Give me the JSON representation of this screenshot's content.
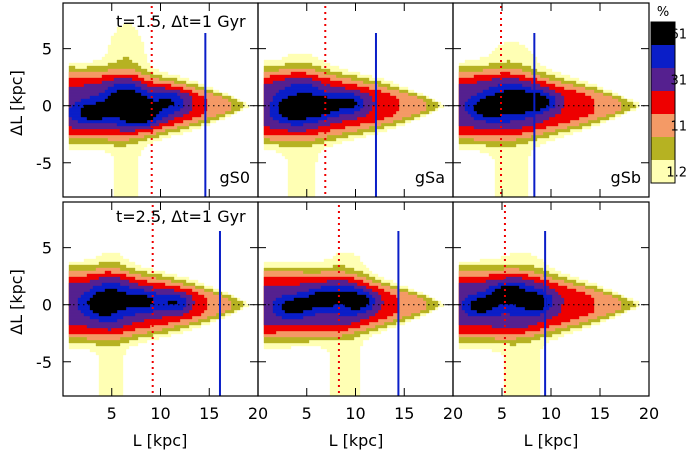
{
  "figure": {
    "annotations": {
      "row0": "t=1.5, Δt=1 Gyr",
      "row1": "t=2.5, Δt=1 Gyr"
    },
    "colorbar": {
      "unit": "%",
      "tick_labels": [
        "61",
        "31",
        "11",
        "1.2"
      ],
      "colors": [
        "#000000",
        "#0a1ec8",
        "#55208f",
        "#ee0000",
        "#f49a66",
        "#b6b222",
        "#ffffb4"
      ]
    },
    "contour_colors": [
      "#ffffb4",
      "#b6b222",
      "#f49a66",
      "#ee0000",
      "#55208f",
      "#0a1ec8",
      "#000000"
    ],
    "line_colors": {
      "dotted": "#ee0000",
      "solid": "#0a1ec8"
    }
  },
  "chart_data": {
    "type": "contour",
    "xlabel": "L [kpc]",
    "ylabel": "ΔL [kpc]",
    "xlim": [
      0,
      20
    ],
    "ylim": [
      -8,
      9
    ],
    "xticks": [
      5,
      10,
      15,
      20
    ],
    "yticks": [
      -5,
      0,
      5
    ],
    "zero_line": {
      "y": 0,
      "style": "dotted"
    },
    "contour_levels_percent": [
      1.2,
      11,
      31,
      61
    ],
    "panels": [
      {
        "row": 0,
        "col": 0,
        "label": "gS0",
        "dotted_x": 9.1,
        "solid_x": 14.6,
        "structure": [
          {
            "x": 3,
            "y": -0.6,
            "s": 1.1
          },
          {
            "x": 6.5,
            "y": 0.2,
            "s": 1.1
          },
          {
            "x": 8.2,
            "y": -1.0,
            "s": 1.1
          },
          {
            "x": 11,
            "y": 0.3,
            "s": 1.2
          }
        ],
        "hump": {
          "x": 6.5,
          "height": 7.0,
          "width": 2.2
        }
      },
      {
        "row": 0,
        "col": 1,
        "label": "gSa",
        "dotted_x": 6.9,
        "solid_x": 12.1,
        "structure": [
          {
            "x": 3.5,
            "y": -0.4,
            "s": 1.0
          },
          {
            "x": 6.5,
            "y": -0.1,
            "s": 1.0
          },
          {
            "x": 9.5,
            "y": 0.2,
            "s": 1.0
          }
        ],
        "hump": {
          "x": 4.5,
          "height": 4.5,
          "width": 2.5
        }
      },
      {
        "row": 0,
        "col": 2,
        "label": "gSb",
        "dotted_x": 4.9,
        "solid_x": 8.3,
        "structure": [
          {
            "x": 3.5,
            "y": -0.2,
            "s": 1.0
          },
          {
            "x": 6.5,
            "y": 0.2,
            "s": 1.0
          },
          {
            "x": 9,
            "y": 0.3,
            "s": 0.9
          }
        ],
        "hump": {
          "x": 6,
          "height": 5.5,
          "width": 3.0
        }
      },
      {
        "row": 1,
        "col": 0,
        "label": "",
        "dotted_x": 9.2,
        "solid_x": 16.1,
        "structure": [
          {
            "x": 4,
            "y": 0,
            "s": 1.1
          },
          {
            "x": 8,
            "y": 0.3,
            "s": 1.1
          },
          {
            "x": 11.5,
            "y": 0.2,
            "s": 1.0
          }
        ],
        "hump": {
          "x": 5,
          "height": 4.5,
          "width": 2.0
        }
      },
      {
        "row": 1,
        "col": 1,
        "label": "",
        "dotted_x": 8.3,
        "solid_x": 14.4,
        "structure": [
          {
            "x": 3.5,
            "y": -0.2,
            "s": 1.0
          },
          {
            "x": 6.5,
            "y": 0.4,
            "s": 1.0
          },
          {
            "x": 10.5,
            "y": 0.2,
            "s": 1.0
          }
        ],
        "hump": {
          "x": 9,
          "height": 4.5,
          "width": 2.5
        }
      },
      {
        "row": 1,
        "col": 2,
        "label": "",
        "dotted_x": 5.3,
        "solid_x": 9.4,
        "structure": [
          {
            "x": 2.8,
            "y": -0.1,
            "s": 0.9
          },
          {
            "x": 5.5,
            "y": 0.8,
            "s": 0.9
          },
          {
            "x": 8.5,
            "y": 0.1,
            "s": 0.9
          }
        ],
        "hump": {
          "x": 7,
          "height": 4.5,
          "width": 3.0
        }
      }
    ]
  }
}
